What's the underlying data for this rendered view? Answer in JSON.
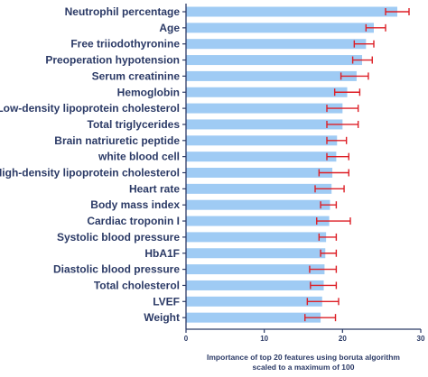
{
  "chart_data": {
    "type": "bar",
    "orientation": "horizontal",
    "categories": [
      "Neutrophil percentage",
      "Age",
      "Free triiodothyronine",
      "Preoperation hypotension",
      "Serum creatinine",
      "Hemoglobin",
      "Low-density lipoprotein cholesterol",
      "Total triglycerides",
      "Brain natriuretic peptide",
      "white blood cell",
      "High-density lipoprotein cholesterol",
      "Heart rate",
      "Body mass index",
      "Cardiac troponin I",
      "Systolic blood pressure",
      "HbA1F",
      "Diastolic blood pressure",
      "Total cholesterol",
      "LVEF",
      "Weight"
    ],
    "values": [
      27.0,
      24.0,
      23.0,
      22.5,
      21.8,
      20.6,
      20.0,
      20.0,
      19.3,
      19.2,
      18.7,
      18.6,
      18.4,
      18.3,
      17.9,
      17.8,
      17.7,
      17.6,
      17.4,
      17.2
    ],
    "error_low": [
      25.5,
      23.0,
      21.5,
      21.3,
      19.8,
      19.0,
      18.0,
      18.0,
      18.0,
      18.0,
      17.0,
      16.5,
      17.2,
      16.7,
      17.0,
      17.2,
      15.8,
      15.9,
      15.5,
      15.2
    ],
    "error_high": [
      28.5,
      25.5,
      24.0,
      23.8,
      23.3,
      22.2,
      22.0,
      22.0,
      20.5,
      20.8,
      20.8,
      20.2,
      19.2,
      21.0,
      19.2,
      19.2,
      19.2,
      19.2,
      19.5,
      19.1
    ],
    "xlabel": "Importance of top 20 features using boruta algorithm scaled to a maximum of 100",
    "xlabel_lines": [
      "Importance of top 20 features using boruta algorithm",
      "scaled to a maximum of 100"
    ],
    "xlim": [
      0,
      30
    ],
    "xticks": [
      0,
      10,
      20,
      30
    ],
    "grid": false,
    "bar_color": "#9fcbf4",
    "error_color": "#dd1f26",
    "axis_color": "#2b3a66"
  }
}
